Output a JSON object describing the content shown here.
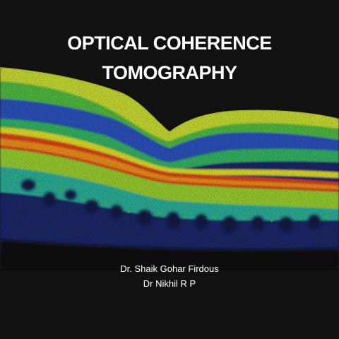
{
  "slide": {
    "title_line_1": "OPTICAL COHERENCE",
    "title_line_2": "TOMOGRAPHY",
    "authors": [
      "Dr. Shaik Gohar Firdous",
      "Dr Nikhil R P"
    ]
  },
  "image": {
    "subject": "retinal OCT cross-section scan",
    "background_color": "#111111",
    "palette": [
      "#1a2a6e",
      "#2c4ad8",
      "#22c9c0",
      "#3ac83a",
      "#c8e82a",
      "#f3f226",
      "#ff9a1a",
      "#e8311a"
    ]
  }
}
